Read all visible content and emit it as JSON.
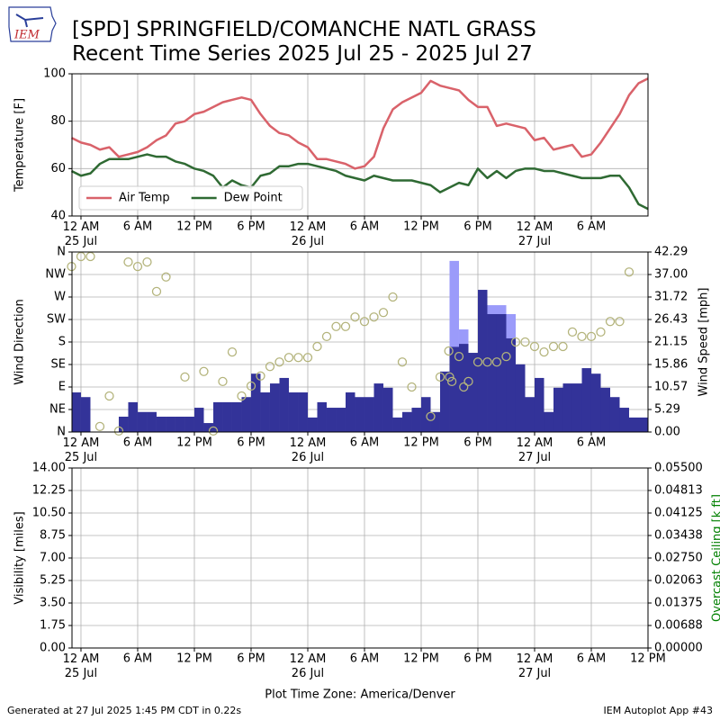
{
  "title_lines": [
    "[SPD] SPRINGFIELD/COMANCHE NATL GRASS",
    "Recent Time Series 2025 Jul 25 - 2025 Jul 27"
  ],
  "logo_text": "IEM",
  "footer_left": "Generated at 27 Jul 2025 1:45 PM CDT in 0.22s",
  "footer_right": "IEM Autoplot App #43",
  "chart_data": [
    {
      "type": "line",
      "ylabel": "Temperature [F]",
      "xlim": [
        "2025-07-24 23:03",
        "2025-07-27 12:00"
      ],
      "xticks": [
        {
          "value": "2025-07-25 00:00",
          "label": "12 AM\n25 Jul"
        },
        {
          "value": "2025-07-25 06:00",
          "label": "6 AM"
        },
        {
          "value": "2025-07-25 12:00",
          "label": "12 PM"
        },
        {
          "value": "2025-07-25 18:00",
          "label": "6 PM"
        },
        {
          "value": "2025-07-26 00:00",
          "label": "12 AM\n26 Jul"
        },
        {
          "value": "2025-07-26 06:00",
          "label": "6 AM"
        },
        {
          "value": "2025-07-26 12:00",
          "label": "12 PM"
        },
        {
          "value": "2025-07-26 18:00",
          "label": "6 PM"
        },
        {
          "value": "2025-07-27 00:00",
          "label": "12 AM\n27 Jul"
        },
        {
          "value": "2025-07-27 06:00",
          "label": "6 AM"
        }
      ],
      "ylim": [
        40,
        100
      ],
      "yticks": [
        40,
        60,
        80,
        100
      ],
      "grid": true,
      "legend": "lower left",
      "x": [
        "2025-07-24 23:00",
        "2025-07-25 00:00",
        "2025-07-25 01:00",
        "2025-07-25 02:00",
        "2025-07-25 03:00",
        "2025-07-25 04:00",
        "2025-07-25 05:00",
        "2025-07-25 06:00",
        "2025-07-25 07:00",
        "2025-07-25 08:00",
        "2025-07-25 09:00",
        "2025-07-25 10:00",
        "2025-07-25 11:00",
        "2025-07-25 12:00",
        "2025-07-25 13:00",
        "2025-07-25 14:00",
        "2025-07-25 15:00",
        "2025-07-25 16:00",
        "2025-07-25 17:00",
        "2025-07-25 18:00",
        "2025-07-25 19:00",
        "2025-07-25 20:00",
        "2025-07-25 21:00",
        "2025-07-25 22:00",
        "2025-07-25 23:00",
        "2025-07-26 00:00",
        "2025-07-26 01:00",
        "2025-07-26 02:00",
        "2025-07-26 03:00",
        "2025-07-26 04:00",
        "2025-07-26 05:00",
        "2025-07-26 06:00",
        "2025-07-26 07:00",
        "2025-07-26 08:00",
        "2025-07-26 09:00",
        "2025-07-26 10:00",
        "2025-07-26 11:00",
        "2025-07-26 12:00",
        "2025-07-26 13:00",
        "2025-07-26 14:00",
        "2025-07-26 15:00",
        "2025-07-26 16:00",
        "2025-07-26 17:00",
        "2025-07-26 18:00",
        "2025-07-26 19:00",
        "2025-07-26 20:00",
        "2025-07-26 21:00",
        "2025-07-26 22:00",
        "2025-07-26 23:00",
        "2025-07-27 00:00",
        "2025-07-27 01:00",
        "2025-07-27 02:00",
        "2025-07-27 03:00",
        "2025-07-27 04:00",
        "2025-07-27 05:00",
        "2025-07-27 06:00",
        "2025-07-27 07:00",
        "2025-07-27 08:00",
        "2025-07-27 09:00",
        "2025-07-27 10:00",
        "2025-07-27 11:00",
        "2025-07-27 12:00"
      ],
      "series": [
        {
          "name": "Air Temp",
          "color": "#d9626a",
          "values": [
            73,
            71,
            70,
            68,
            69,
            65,
            66,
            67,
            69,
            72,
            74,
            79,
            80,
            83,
            84,
            86,
            88,
            89,
            90,
            89,
            83,
            78,
            75,
            74,
            71,
            69,
            64,
            64,
            63,
            62,
            60,
            61,
            65,
            77,
            85,
            88,
            90,
            92,
            97,
            95,
            94,
            93,
            89,
            86,
            86,
            78,
            79,
            78,
            77,
            72,
            73,
            68,
            69,
            70,
            65,
            66,
            71,
            77,
            83,
            91,
            96,
            98
          ]
        },
        {
          "name": "Dew Point",
          "color": "#2f6a33",
          "values": [
            59,
            57,
            58,
            62,
            64,
            64,
            64,
            65,
            66,
            65,
            65,
            63,
            62,
            60,
            59,
            57,
            52,
            55,
            53,
            52,
            57,
            58,
            61,
            61,
            62,
            62,
            61,
            60,
            59,
            57,
            56,
            55,
            57,
            56,
            55,
            55,
            55,
            54,
            53,
            50,
            52,
            54,
            53,
            60,
            56,
            59,
            56,
            59,
            60,
            60,
            59,
            59,
            58,
            57,
            56,
            56,
            56,
            57,
            57,
            52,
            45,
            43
          ]
        }
      ]
    },
    {
      "type": "wind",
      "ylabel": "Wind Direction",
      "y2label": "Wind Speed [mph]",
      "xlim": [
        "2025-07-24 23:03",
        "2025-07-27 12:00"
      ],
      "xticks": [
        {
          "value": "2025-07-25 00:00",
          "label": "12 AM\n25 Jul"
        },
        {
          "value": "2025-07-25 06:00",
          "label": "6 AM"
        },
        {
          "value": "2025-07-25 12:00",
          "label": "12 PM"
        },
        {
          "value": "2025-07-25 18:00",
          "label": "6 PM"
        },
        {
          "value": "2025-07-26 00:00",
          "label": "12 AM\n26 Jul"
        },
        {
          "value": "2025-07-26 06:00",
          "label": "6 AM"
        },
        {
          "value": "2025-07-26 12:00",
          "label": "12 PM"
        },
        {
          "value": "2025-07-26 18:00",
          "label": "6 PM"
        },
        {
          "value": "2025-07-27 00:00",
          "label": "12 AM\n27 Jul"
        },
        {
          "value": "2025-07-27 06:00",
          "label": "6 AM"
        }
      ],
      "ylim": [
        0,
        360
      ],
      "yticks": [
        {
          "value": 0,
          "label": "N"
        },
        {
          "value": 45,
          "label": "NE"
        },
        {
          "value": 90,
          "label": "E"
        },
        {
          "value": 135,
          "label": "SE"
        },
        {
          "value": 180,
          "label": "S"
        },
        {
          "value": 225,
          "label": "SW"
        },
        {
          "value": 270,
          "label": "W"
        },
        {
          "value": 315,
          "label": "NW"
        },
        {
          "value": 360,
          "label": "N"
        }
      ],
      "y2lim": [
        0,
        42.29
      ],
      "y2ticks": [
        {
          "value": 0,
          "label": "0.00"
        },
        5.29,
        10.57,
        15.86,
        21.15,
        26.43,
        31.72,
        {
          "value": 37,
          "label": "37.00"
        },
        42.29
      ],
      "grid": true,
      "x": [
        "2025-07-24 23:00",
        "2025-07-25 00:00",
        "2025-07-25 01:00",
        "2025-07-25 02:00",
        "2025-07-25 03:00",
        "2025-07-25 04:00",
        "2025-07-25 05:00",
        "2025-07-25 06:00",
        "2025-07-25 07:00",
        "2025-07-25 08:00",
        "2025-07-25 09:00",
        "2025-07-25 10:00",
        "2025-07-25 11:00",
        "2025-07-25 12:00",
        "2025-07-25 13:00",
        "2025-07-25 14:00",
        "2025-07-25 15:00",
        "2025-07-25 16:00",
        "2025-07-25 17:00",
        "2025-07-25 18:00",
        "2025-07-25 19:00",
        "2025-07-25 20:00",
        "2025-07-25 21:00",
        "2025-07-25 22:00",
        "2025-07-25 23:00",
        "2025-07-26 00:00",
        "2025-07-26 01:00",
        "2025-07-26 02:00",
        "2025-07-26 03:00",
        "2025-07-26 04:00",
        "2025-07-26 05:00",
        "2025-07-26 06:00",
        "2025-07-26 07:00",
        "2025-07-26 08:00",
        "2025-07-26 09:00",
        "2025-07-26 10:00",
        "2025-07-26 11:00",
        "2025-07-26 12:00",
        "2025-07-26 13:00",
        "2025-07-26 14:00",
        "2025-07-26 15:00",
        "2025-07-26 16:00",
        "2025-07-26 17:00",
        "2025-07-26 18:00",
        "2025-07-26 19:00",
        "2025-07-26 20:00",
        "2025-07-26 21:00",
        "2025-07-26 22:00",
        "2025-07-26 23:00",
        "2025-07-27 00:00",
        "2025-07-27 01:00",
        "2025-07-27 02:00",
        "2025-07-27 03:00",
        "2025-07-27 04:00",
        "2025-07-27 05:00",
        "2025-07-27 06:00",
        "2025-07-27 07:00",
        "2025-07-27 08:00",
        "2025-07-27 09:00",
        "2025-07-27 10:00",
        "2025-07-27 11:00",
        "2025-07-27 12:00"
      ],
      "series": [
        {
          "kind": "bar",
          "axis": "y2",
          "color": "#9b9bfa",
          "values": [
            null,
            null,
            null,
            null,
            null,
            null,
            null,
            null,
            null,
            null,
            null,
            null,
            null,
            null,
            null,
            null,
            null,
            null,
            null,
            null,
            null,
            null,
            null,
            null,
            null,
            null,
            null,
            null,
            null,
            null,
            null,
            null,
            null,
            null,
            null,
            null,
            null,
            null,
            null,
            null,
            40.2,
            24.1,
            null,
            null,
            29.8,
            29.8,
            27.7,
            null,
            null,
            null,
            null,
            null,
            null,
            null,
            null,
            null,
            null,
            null,
            null,
            null,
            null,
            null
          ]
        },
        {
          "kind": "bar",
          "axis": "y2",
          "color": "#333399",
          "values": [
            9.3,
            8.2,
            0,
            0,
            0,
            3.6,
            7.0,
            4.7,
            4.7,
            3.6,
            3.6,
            3.6,
            3.6,
            5.7,
            2.1,
            7.0,
            7.0,
            7.0,
            8.2,
            13.7,
            9.3,
            11.4,
            12.7,
            9.3,
            9.3,
            3.4,
            7.0,
            5.7,
            5.7,
            9.3,
            8.2,
            8.2,
            11.4,
            10.4,
            3.4,
            4.7,
            5.7,
            8.2,
            4.7,
            14.2,
            20,
            20.7,
            18.6,
            33.4,
            27.7,
            27.7,
            22.0,
            15.9,
            8.2,
            12.7,
            4.7,
            10.4,
            11.4,
            11.4,
            15.0,
            13.7,
            10.4,
            8.2,
            5.7,
            3.4,
            3.4,
            null
          ]
        },
        {
          "kind": "scatter",
          "color": "#b4b47c",
          "x": [
            "2025-07-24 23:00",
            "2025-07-25 00:00",
            "2025-07-25 01:00",
            "2025-07-25 02:00",
            "2025-07-25 03:00",
            "2025-07-25 04:00",
            "2025-07-25 05:00",
            "2025-07-25 06:00",
            "2025-07-25 07:00",
            "2025-07-25 08:00",
            "2025-07-25 09:00",
            "2025-07-25 11:00",
            "2025-07-25 13:00",
            "2025-07-25 14:00",
            "2025-07-25 15:00",
            "2025-07-25 16:00",
            "2025-07-25 17:00",
            "2025-07-25 18:00",
            "2025-07-25 19:00",
            "2025-07-25 20:00",
            "2025-07-25 21:00",
            "2025-07-25 22:00",
            "2025-07-25 23:00",
            "2025-07-26 00:00",
            "2025-07-26 01:00",
            "2025-07-26 02:00",
            "2025-07-26 03:00",
            "2025-07-26 04:00",
            "2025-07-26 05:00",
            "2025-07-26 06:00",
            "2025-07-26 07:00",
            "2025-07-26 08:00",
            "2025-07-26 09:00",
            "2025-07-26 10:00",
            "2025-07-26 11:00",
            "2025-07-26 13:00",
            "2025-07-26 14:00",
            "2025-07-26 14:55",
            "2025-07-26 15:00",
            "2025-07-26 15:15",
            "2025-07-26 16:00",
            "2025-07-26 16:30",
            "2025-07-26 17:00",
            "2025-07-26 18:00",
            "2025-07-26 19:00",
            "2025-07-26 20:00",
            "2025-07-26 21:00",
            "2025-07-26 22:00",
            "2025-07-26 23:00",
            "2025-07-27 00:00",
            "2025-07-27 01:00",
            "2025-07-27 02:00",
            "2025-07-27 03:00",
            "2025-07-27 04:00",
            "2025-07-27 05:00",
            "2025-07-27 06:00",
            "2025-07-27 07:00",
            "2025-07-27 08:00",
            "2025-07-27 09:00",
            "2025-07-27 10:00"
          ],
          "values": [
            331,
            351,
            351,
            11,
            72,
            2,
            340,
            331,
            340,
            281,
            310,
            110,
            121,
            2,
            101,
            160,
            72,
            92,
            112,
            131,
            140,
            149,
            149,
            149,
            171,
            191,
            211,
            211,
            230,
            221,
            230,
            239,
            270,
            140,
            90,
            31,
            110,
            162,
            110,
            101,
            151,
            90,
            101,
            140,
            140,
            140,
            151,
            180,
            180,
            171,
            160,
            171,
            171,
            200,
            191,
            191,
            200,
            221,
            221,
            320
          ]
        }
      ]
    },
    {
      "type": "line",
      "ylabel": "Visibility [miles]",
      "y2label": "Overcast Ceiling [k ft]",
      "y2label_color": "#008000",
      "xlabel": "Plot Time Zone: America/Denver",
      "xlim": [
        "2025-07-24 23:03",
        "2025-07-27 12:00"
      ],
      "xticks": [
        {
          "value": "2025-07-25 00:00",
          "label": "12 AM\n25 Jul"
        },
        {
          "value": "2025-07-25 06:00",
          "label": "6 AM"
        },
        {
          "value": "2025-07-25 12:00",
          "label": "12 PM"
        },
        {
          "value": "2025-07-25 18:00",
          "label": "6 PM"
        },
        {
          "value": "2025-07-26 00:00",
          "label": "12 AM\n26 Jul"
        },
        {
          "value": "2025-07-26 06:00",
          "label": "6 AM"
        },
        {
          "value": "2025-07-26 12:00",
          "label": "12 PM"
        },
        {
          "value": "2025-07-26 18:00",
          "label": "6 PM"
        },
        {
          "value": "2025-07-27 00:00",
          "label": "12 AM\n27 Jul"
        },
        {
          "value": "2025-07-27 06:00",
          "label": "6 AM"
        },
        {
          "value": "2025-07-27 12:00",
          "label": "12 PM"
        }
      ],
      "ylim": [
        0,
        14
      ],
      "yticks": [
        {
          "value": 0,
          "label": "0.00"
        },
        1.75,
        {
          "value": 3.5,
          "label": "3.50"
        },
        5.25,
        {
          "value": 7,
          "label": "7.00"
        },
        8.75,
        {
          "value": 10.5,
          "label": "10.50"
        },
        12.25,
        {
          "value": 14,
          "label": "14.00"
        }
      ],
      "y2lim": [
        0,
        0.055
      ],
      "y2ticks": [
        {
          "value": 0,
          "label": "0.00000"
        },
        0.00688,
        0.01375,
        0.02063,
        {
          "value": 0.0275,
          "label": "0.02750"
        },
        0.03438,
        0.04125,
        0.04813,
        {
          "value": 0.055,
          "label": "0.05500"
        }
      ],
      "grid": true,
      "series": []
    }
  ]
}
